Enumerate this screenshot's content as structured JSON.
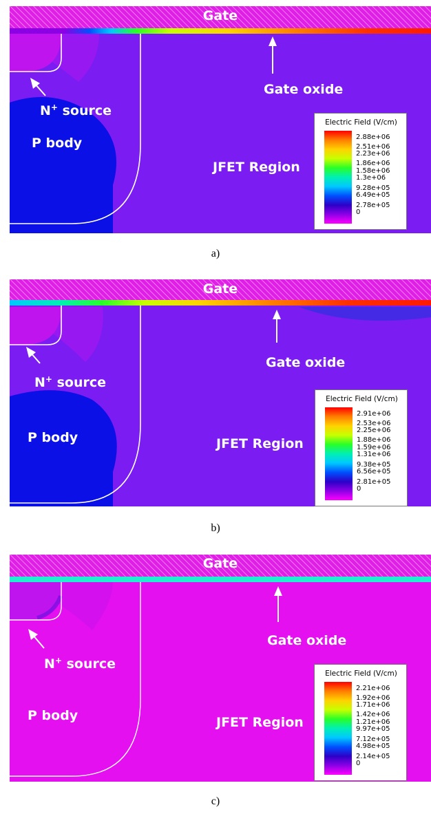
{
  "panels": [
    {
      "caption": "a)",
      "gate_label": "Gate",
      "oxide_label": "Gate oxide",
      "source_label": "N",
      "source_superscript": "+",
      "source_suffix": " source",
      "body_label": "P body",
      "jfet_label": "JFET Region",
      "legend_title": "Electric Field (V/cm)",
      "legend_ticks": [
        "2.88e+06",
        "2.51e+06",
        "2.23e+06",
        "1.86e+06",
        "1.58e+06",
        "1.3e+06",
        "9.28e+05",
        "6.49e+05",
        "2.78e+05",
        "0"
      ],
      "colors": {
        "background": "#7b1cf2",
        "body": "#0a10e6",
        "source": "#c014ee"
      }
    },
    {
      "caption": "b)",
      "gate_label": "Gate",
      "oxide_label": "Gate oxide",
      "source_label": "N",
      "source_superscript": "+",
      "source_suffix": " source",
      "body_label": "P body",
      "jfet_label": "JFET Region",
      "legend_title": "Electric Field (V/cm)",
      "legend_ticks": [
        "2.91e+06",
        "2.53e+06",
        "2.25e+06",
        "1.88e+06",
        "1.59e+06",
        "1.31e+06",
        "9.38e+05",
        "6.56e+05",
        "2.81e+05",
        "0"
      ],
      "colors": {
        "background": "#7b1cf2",
        "body": "#0a10e6",
        "source": "#c014ee"
      }
    },
    {
      "caption": "c)",
      "gate_label": "Gate",
      "oxide_label": "Gate oxide",
      "source_label": "N",
      "source_superscript": "+",
      "source_suffix": " source",
      "body_label": "P body",
      "jfet_label": "JFET Region",
      "legend_title": "Electric Field (V/cm)",
      "legend_ticks": [
        "2.21e+06",
        "1.92e+06",
        "1.71e+06",
        "1.42e+06",
        "1.21e+06",
        "9.97e+05",
        "7.12e+05",
        "4.98e+05",
        "2.14e+05",
        "0"
      ],
      "colors": {
        "background": "#e510f0",
        "body": "#e510f0",
        "source": "#c014ee"
      }
    }
  ],
  "colors": {
    "gate_fill": "#e01fe6",
    "gate_hatch": "#f07ef2",
    "boundary": "#ffffff",
    "scale": [
      "#ff0000",
      "#ff7f00",
      "#ffd200",
      "#c8ff00",
      "#28ff28",
      "#00f0b4",
      "#00c8ff",
      "#0050ff",
      "#2d00c8",
      "#8c00e6",
      "#ff00ff"
    ]
  }
}
